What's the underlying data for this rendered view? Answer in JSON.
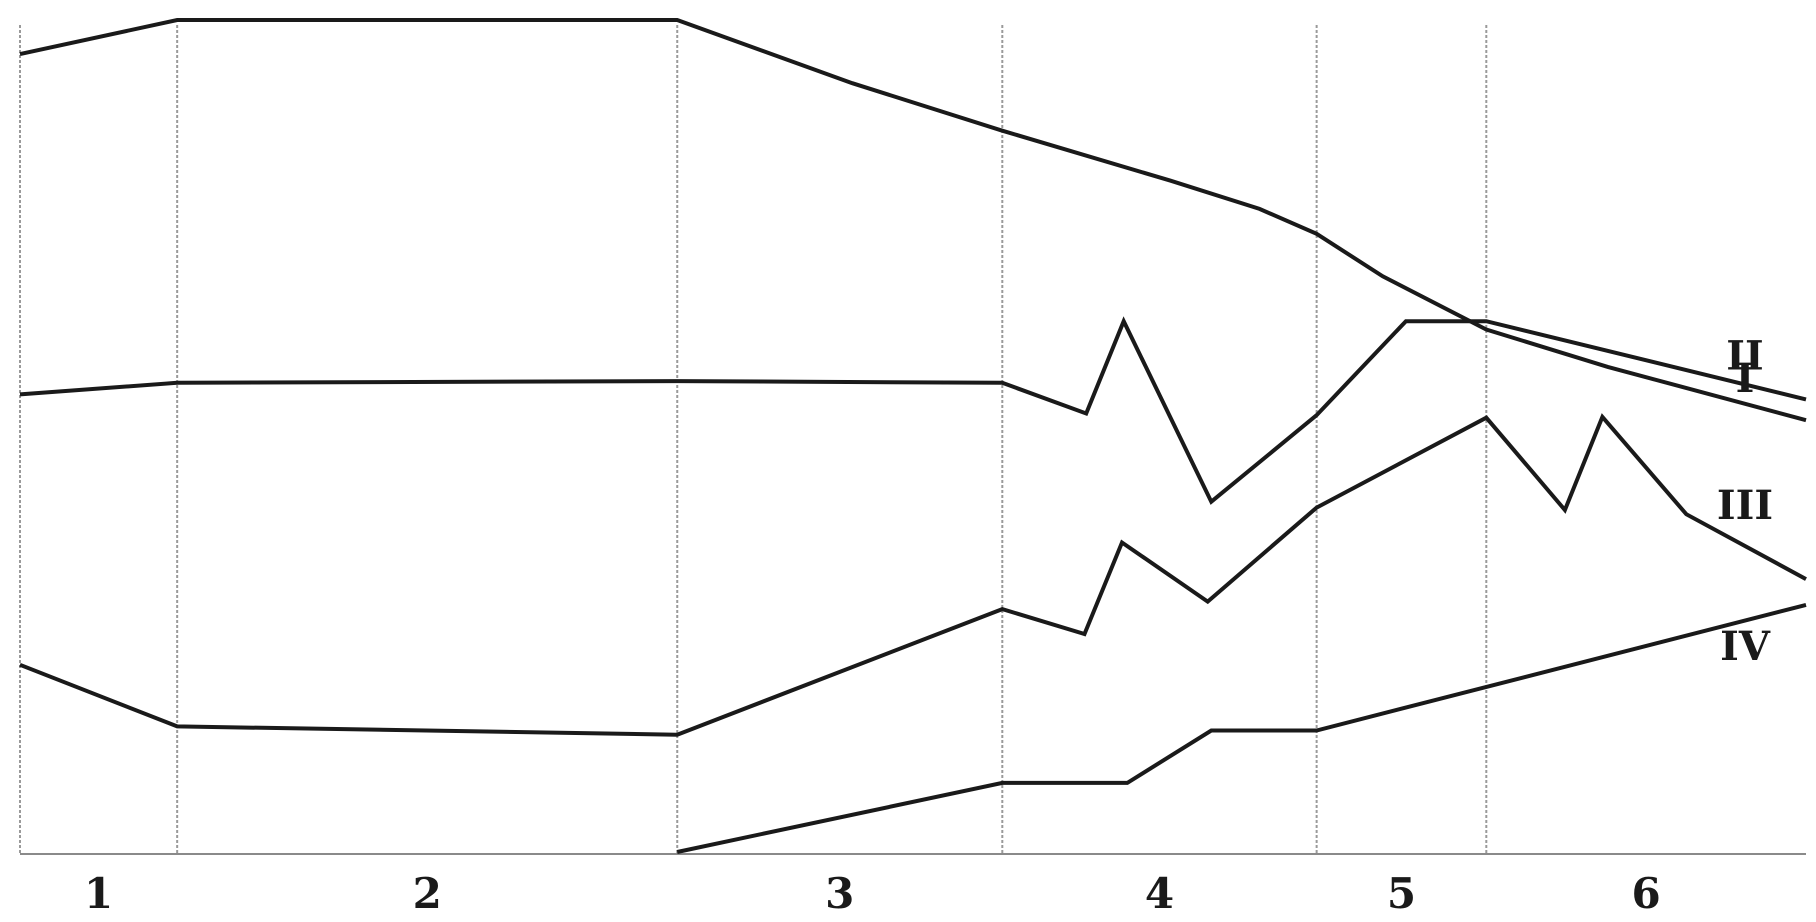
{
  "chart_data": {
    "type": "line",
    "x_label": "",
    "y_label": "",
    "grid": true,
    "xlim": [
      0,
      100
    ],
    "ylim": [
      0,
      100
    ],
    "zones": [
      {
        "label": "1",
        "start": 0,
        "end": 8.8
      },
      {
        "label": "2",
        "start": 8.8,
        "end": 36.8
      },
      {
        "label": "3",
        "start": 36.8,
        "end": 55
      },
      {
        "label": "4",
        "start": 55,
        "end": 72.6
      },
      {
        "label": "5",
        "start": 72.6,
        "end": 82.1
      },
      {
        "label": "6",
        "start": 82.1,
        "end": 100
      }
    ],
    "series": [
      {
        "name": "I",
        "points": [
          [
            0,
            95.9
          ],
          [
            8.8,
            100
          ],
          [
            36.8,
            100
          ],
          [
            46.6,
            92.4
          ],
          [
            55,
            86.7
          ],
          [
            64.4,
            80.7
          ],
          [
            69.4,
            77.3
          ],
          [
            72.6,
            74.3
          ],
          [
            76.3,
            69.2
          ],
          [
            82.1,
            62.8
          ],
          [
            88.9,
            58.3
          ],
          [
            100,
            51.9
          ]
        ]
      },
      {
        "name": "II",
        "points": [
          [
            0,
            55
          ],
          [
            8.8,
            56.4
          ],
          [
            36.8,
            56.6
          ],
          [
            55,
            56.4
          ],
          [
            59.7,
            52.7
          ],
          [
            61.8,
            63.8
          ],
          [
            66.7,
            42.1
          ],
          [
            72.6,
            52.5
          ],
          [
            77.6,
            63.8
          ],
          [
            82.1,
            63.8
          ],
          [
            100,
            54.4
          ]
        ]
      },
      {
        "name": "III",
        "points": [
          [
            0,
            22.5
          ],
          [
            8.8,
            15.1
          ],
          [
            36.8,
            14.1
          ],
          [
            55,
            29.2
          ],
          [
            59.6,
            26.2
          ],
          [
            61.7,
            37.2
          ],
          [
            66.5,
            30.1
          ],
          [
            72.6,
            41.4
          ],
          [
            82.1,
            52.2
          ],
          [
            86.5,
            41.1
          ],
          [
            88.6,
            52.3
          ],
          [
            93.3,
            40.6
          ],
          [
            100,
            32.8
          ]
        ]
      },
      {
        "name": "IV",
        "points": [
          [
            36.8,
            0
          ],
          [
            55,
            8.3
          ],
          [
            62,
            8.3
          ],
          [
            66.7,
            14.6
          ],
          [
            72.6,
            14.6
          ],
          [
            100,
            29.7
          ]
        ]
      }
    ]
  }
}
